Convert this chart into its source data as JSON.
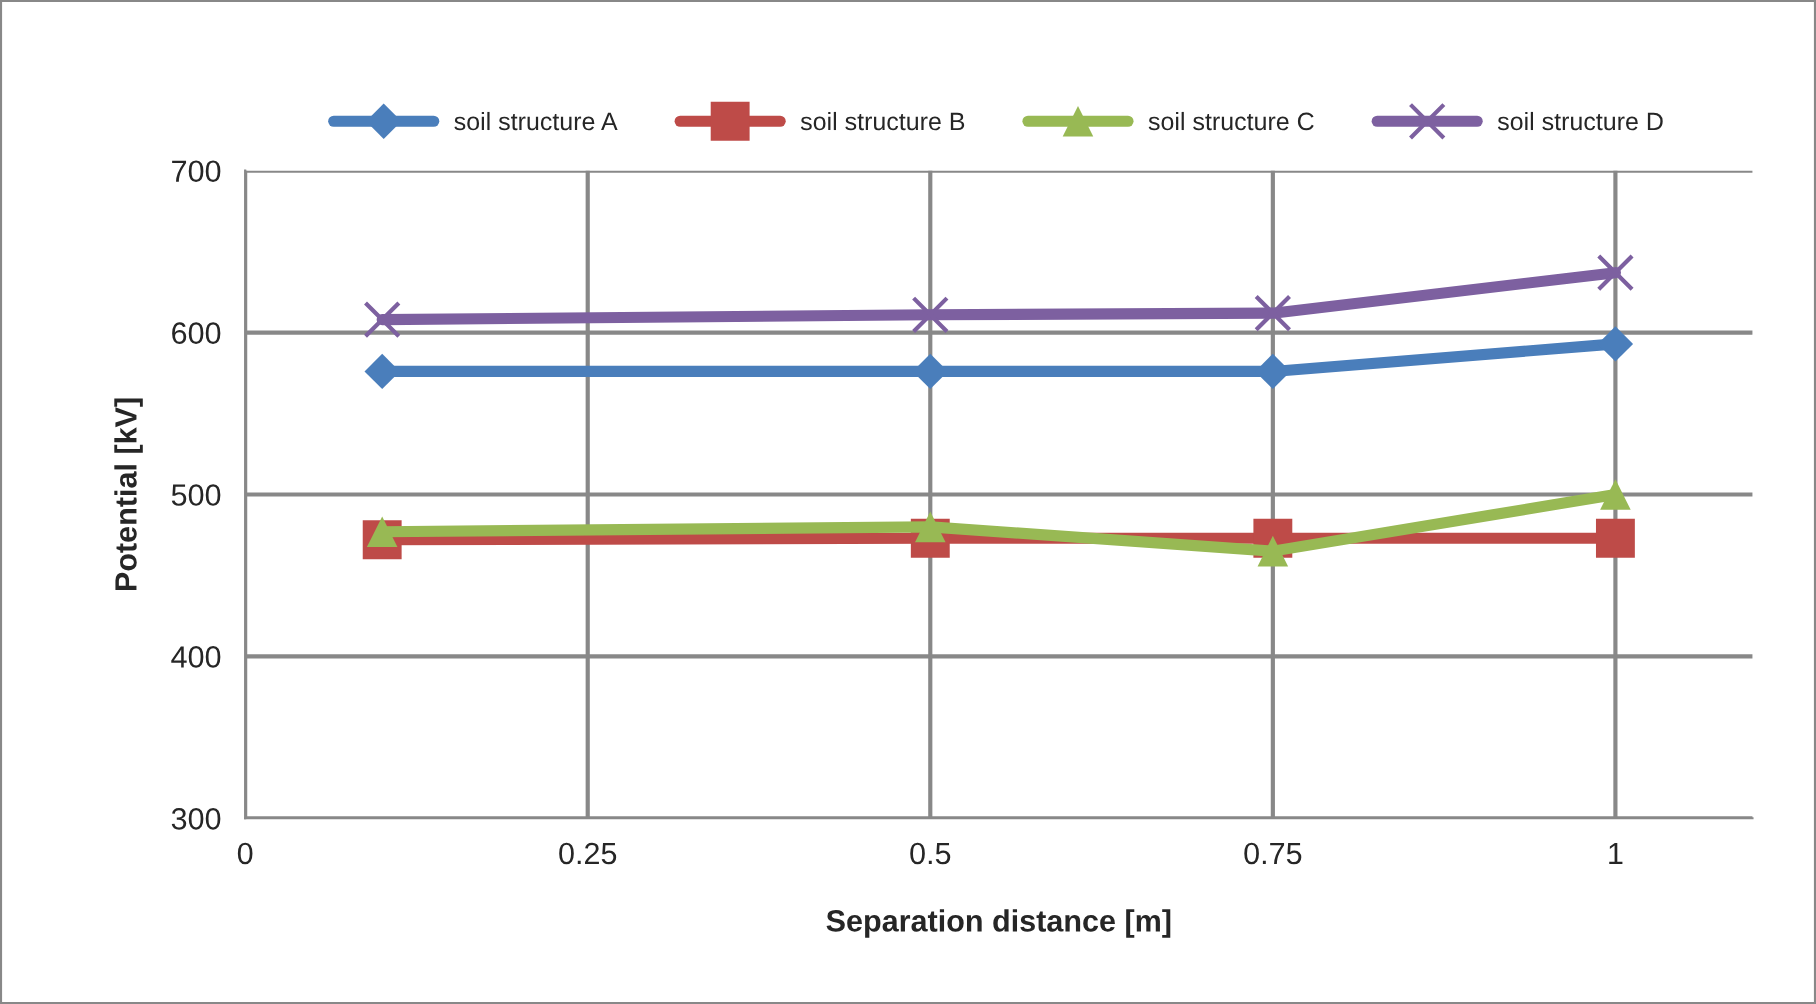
{
  "chart_data": {
    "type": "line",
    "xlabel": "Separation distance [m]",
    "ylabel": "Potential [kV]",
    "x": [
      0.1,
      0.5,
      0.75,
      1
    ],
    "series": [
      {
        "name": "soil structure A",
        "color": "#4a7ebb",
        "marker": "diamond",
        "values": [
          576,
          576,
          576,
          593
        ]
      },
      {
        "name": "soil structure B",
        "color": "#be4b48",
        "marker": "square",
        "values": [
          472,
          473,
          473,
          473
        ]
      },
      {
        "name": "soil structure C",
        "color": "#98b954",
        "marker": "triangle",
        "values": [
          477,
          480,
          465,
          500
        ]
      },
      {
        "name": "soil structure D",
        "color": "#7d60a0",
        "marker": "cross",
        "values": [
          608,
          611,
          612,
          637
        ]
      }
    ],
    "xlim": [
      0,
      1.1
    ],
    "xticks": [
      0,
      0.25,
      0.5,
      0.75,
      1
    ],
    "ylim": [
      300,
      700
    ],
    "yticks": [
      300,
      400,
      500,
      600,
      700
    ],
    "grid": true,
    "legend": "top"
  }
}
